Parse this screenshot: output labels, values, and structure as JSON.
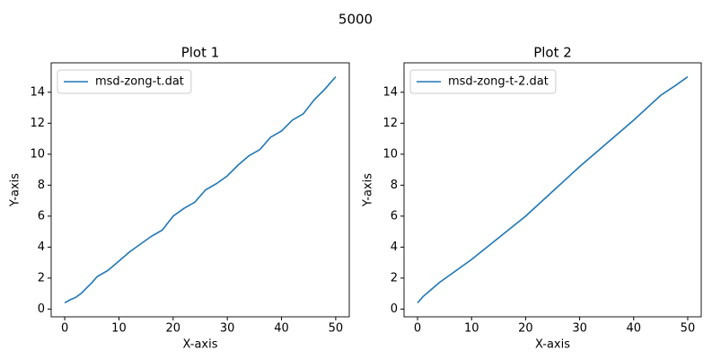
{
  "title": "5000",
  "chart_data": [
    {
      "type": "line",
      "title": "Plot 1",
      "xlabel": "X-axis",
      "ylabel": "Y-axis",
      "x": [
        0,
        1,
        2,
        3,
        4,
        5,
        6,
        8,
        10,
        12,
        14,
        16,
        18,
        20,
        22,
        24,
        26,
        28,
        30,
        32,
        34,
        36,
        38,
        40,
        42,
        44,
        46,
        48,
        50
      ],
      "series": [
        {
          "name": "msd-zong-t.dat",
          "color": "#1f77b4",
          "values": [
            0.4,
            0.6,
            0.75,
            1.0,
            1.35,
            1.7,
            2.1,
            2.5,
            3.1,
            3.7,
            4.2,
            4.7,
            5.1,
            6.0,
            6.5,
            6.9,
            7.7,
            8.1,
            8.6,
            9.3,
            9.9,
            10.3,
            11.1,
            11.5,
            12.2,
            12.6,
            13.5,
            14.2,
            15.0
          ]
        }
      ],
      "xlim": [
        -2.5,
        52.5
      ],
      "xticks": [
        0,
        10,
        20,
        30,
        40,
        50
      ],
      "ylim": [
        -0.5,
        15.9
      ],
      "yticks": [
        0,
        2,
        4,
        6,
        8,
        10,
        12,
        14
      ],
      "legend": "upper left",
      "grid": false
    },
    {
      "type": "line",
      "title": "Plot 2",
      "xlabel": "X-axis",
      "ylabel": "Y-axis",
      "x": [
        0,
        1,
        2,
        4,
        6,
        8,
        10,
        15,
        20,
        25,
        30,
        35,
        40,
        45,
        48,
        50
      ],
      "series": [
        {
          "name": "msd-zong-t-2.dat",
          "color": "#1f77b4",
          "values": [
            0.4,
            0.8,
            1.1,
            1.7,
            2.2,
            2.7,
            3.2,
            4.6,
            6.0,
            7.6,
            9.2,
            10.7,
            12.2,
            13.8,
            14.5,
            15.0
          ]
        }
      ],
      "xlim": [
        -2.5,
        52.5
      ],
      "xticks": [
        0,
        10,
        20,
        30,
        40,
        50
      ],
      "ylim": [
        -0.5,
        15.9
      ],
      "yticks": [
        0,
        2,
        4,
        6,
        8,
        10,
        12,
        14
      ],
      "legend": "upper left",
      "grid": false
    }
  ]
}
